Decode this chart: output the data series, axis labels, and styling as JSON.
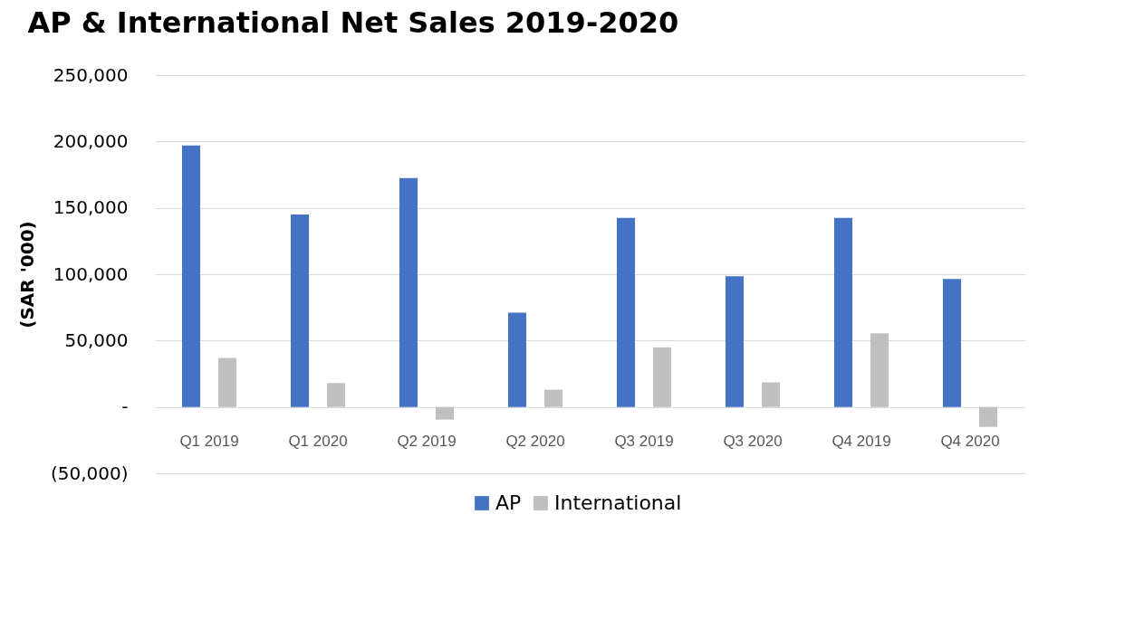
{
  "chart_data": {
    "type": "bar",
    "title": "AP & International Net Sales 2019-2020",
    "ylabel": "(SAR '000)",
    "categories": [
      "Q1 2019",
      "Q1 2020",
      "Q2 2019",
      "Q2 2020",
      "Q3 2019",
      "Q3 2020",
      "Q4 2019",
      "Q4 2020"
    ],
    "series": [
      {
        "name": "AP",
        "color": "#4472c4",
        "values": [
          197000,
          145000,
          172500,
          71000,
          142500,
          98500,
          142500,
          96500
        ]
      },
      {
        "name": "International",
        "color": "#bfbfbf",
        "values": [
          37000,
          18000,
          -9500,
          13000,
          45000,
          18500,
          55500,
          -15000
        ]
      }
    ],
    "ylim": [
      -50000,
      250000
    ],
    "yticks": [
      {
        "value": -50000,
        "label": "(50,000)"
      },
      {
        "value": 0,
        "label": "-"
      },
      {
        "value": 50000,
        "label": "50,000"
      },
      {
        "value": 100000,
        "label": "100,000"
      },
      {
        "value": 150000,
        "label": "150,000"
      },
      {
        "value": 200000,
        "label": "200,000"
      },
      {
        "value": 250000,
        "label": "250,000"
      }
    ],
    "grid": "y",
    "legend": "bottom"
  }
}
